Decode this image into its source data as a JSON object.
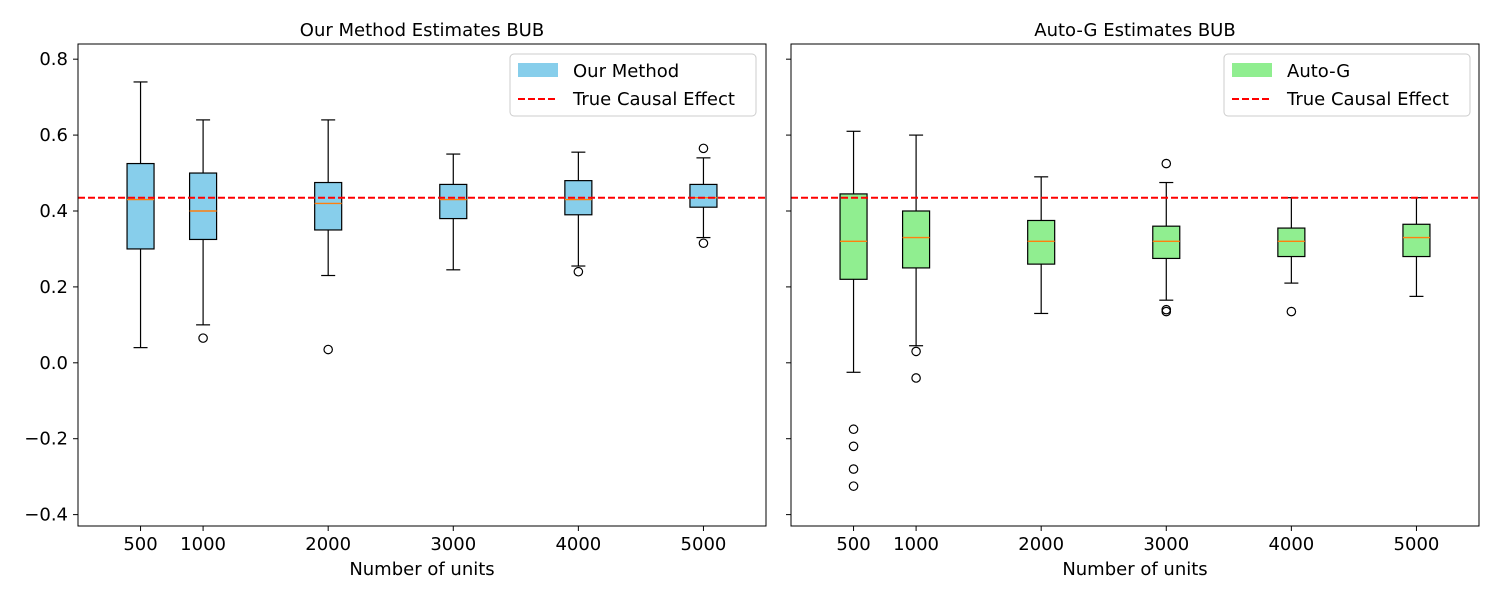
{
  "figure": {
    "background": "#ffffff"
  },
  "chart_data": [
    {
      "type": "box",
      "title": "Our Method Estimates BUB",
      "xlabel": "Number of units",
      "ylabel": "",
      "xlim": [
        0,
        5500
      ],
      "ylim": [
        -0.43,
        0.84
      ],
      "yticks": [
        -0.4,
        -0.2,
        0.0,
        0.2,
        0.4,
        0.6,
        0.8
      ],
      "ytick_labels": [
        "−0.4",
        "−0.2",
        "0.0",
        "0.2",
        "0.4",
        "0.6",
        "0.8"
      ],
      "show_ytick_labels": true,
      "xticks": [
        500,
        1000,
        2000,
        3000,
        4000,
        5000
      ],
      "xtick_labels": [
        "500",
        "1000",
        "2000",
        "3000",
        "4000",
        "5000"
      ],
      "box_color": "#87ceeb",
      "median_color": "#ff7f0e",
      "reference_line": {
        "label": "True Causal Effect",
        "y": 0.435,
        "color": "#ff0000",
        "style": "dashed"
      },
      "legend": {
        "position": "upper right",
        "entries": [
          "Our Method",
          "True Causal Effect"
        ]
      },
      "boxes": [
        {
          "x": 500,
          "whisker_low": 0.04,
          "q1": 0.3,
          "median": 0.43,
          "q3": 0.525,
          "whisker_high": 0.74,
          "outliers": []
        },
        {
          "x": 1000,
          "whisker_low": 0.1,
          "q1": 0.325,
          "median": 0.4,
          "q3": 0.5,
          "whisker_high": 0.64,
          "outliers": [
            0.065
          ]
        },
        {
          "x": 2000,
          "whisker_low": 0.23,
          "q1": 0.35,
          "median": 0.42,
          "q3": 0.475,
          "whisker_high": 0.64,
          "outliers": [
            0.035
          ]
        },
        {
          "x": 3000,
          "whisker_low": 0.245,
          "q1": 0.38,
          "median": 0.43,
          "q3": 0.47,
          "whisker_high": 0.55,
          "outliers": []
        },
        {
          "x": 4000,
          "whisker_low": 0.255,
          "q1": 0.39,
          "median": 0.43,
          "q3": 0.48,
          "whisker_high": 0.555,
          "outliers": [
            0.24
          ]
        },
        {
          "x": 5000,
          "whisker_low": 0.33,
          "q1": 0.41,
          "median": 0.435,
          "q3": 0.47,
          "whisker_high": 0.54,
          "outliers": [
            0.565,
            0.315
          ]
        }
      ]
    },
    {
      "type": "box",
      "title": "Auto-G Estimates BUB",
      "xlabel": "Number of units",
      "ylabel": "",
      "xlim": [
        0,
        5500
      ],
      "ylim": [
        -0.43,
        0.84
      ],
      "yticks": [
        -0.4,
        -0.2,
        0.0,
        0.2,
        0.4,
        0.6,
        0.8
      ],
      "ytick_labels": [
        "",
        "",
        "",
        "",
        "",
        "",
        ""
      ],
      "show_ytick_labels": false,
      "xticks": [
        500,
        1000,
        2000,
        3000,
        4000,
        5000
      ],
      "xtick_labels": [
        "500",
        "1000",
        "2000",
        "3000",
        "4000",
        "5000"
      ],
      "box_color": "#90ee90",
      "median_color": "#ff7f0e",
      "reference_line": {
        "label": "True Causal Effect",
        "y": 0.435,
        "color": "#ff0000",
        "style": "dashed"
      },
      "legend": {
        "position": "upper right",
        "entries": [
          "Auto-G",
          "True Causal Effect"
        ]
      },
      "boxes": [
        {
          "x": 500,
          "whisker_low": -0.025,
          "q1": 0.22,
          "median": 0.32,
          "q3": 0.445,
          "whisker_high": 0.61,
          "outliers": [
            -0.175,
            -0.22,
            -0.28,
            -0.325
          ]
        },
        {
          "x": 1000,
          "whisker_low": 0.045,
          "q1": 0.25,
          "median": 0.33,
          "q3": 0.4,
          "whisker_high": 0.6,
          "outliers": [
            0.03,
            -0.04
          ]
        },
        {
          "x": 2000,
          "whisker_low": 0.13,
          "q1": 0.26,
          "median": 0.32,
          "q3": 0.375,
          "whisker_high": 0.49,
          "outliers": []
        },
        {
          "x": 3000,
          "whisker_low": 0.165,
          "q1": 0.275,
          "median": 0.32,
          "q3": 0.36,
          "whisker_high": 0.475,
          "outliers": [
            0.525,
            0.14,
            0.135
          ]
        },
        {
          "x": 4000,
          "whisker_low": 0.21,
          "q1": 0.28,
          "median": 0.32,
          "q3": 0.355,
          "whisker_high": 0.435,
          "outliers": [
            0.135
          ]
        },
        {
          "x": 5000,
          "whisker_low": 0.175,
          "q1": 0.28,
          "median": 0.33,
          "q3": 0.365,
          "whisker_high": 0.435,
          "outliers": []
        }
      ]
    }
  ]
}
